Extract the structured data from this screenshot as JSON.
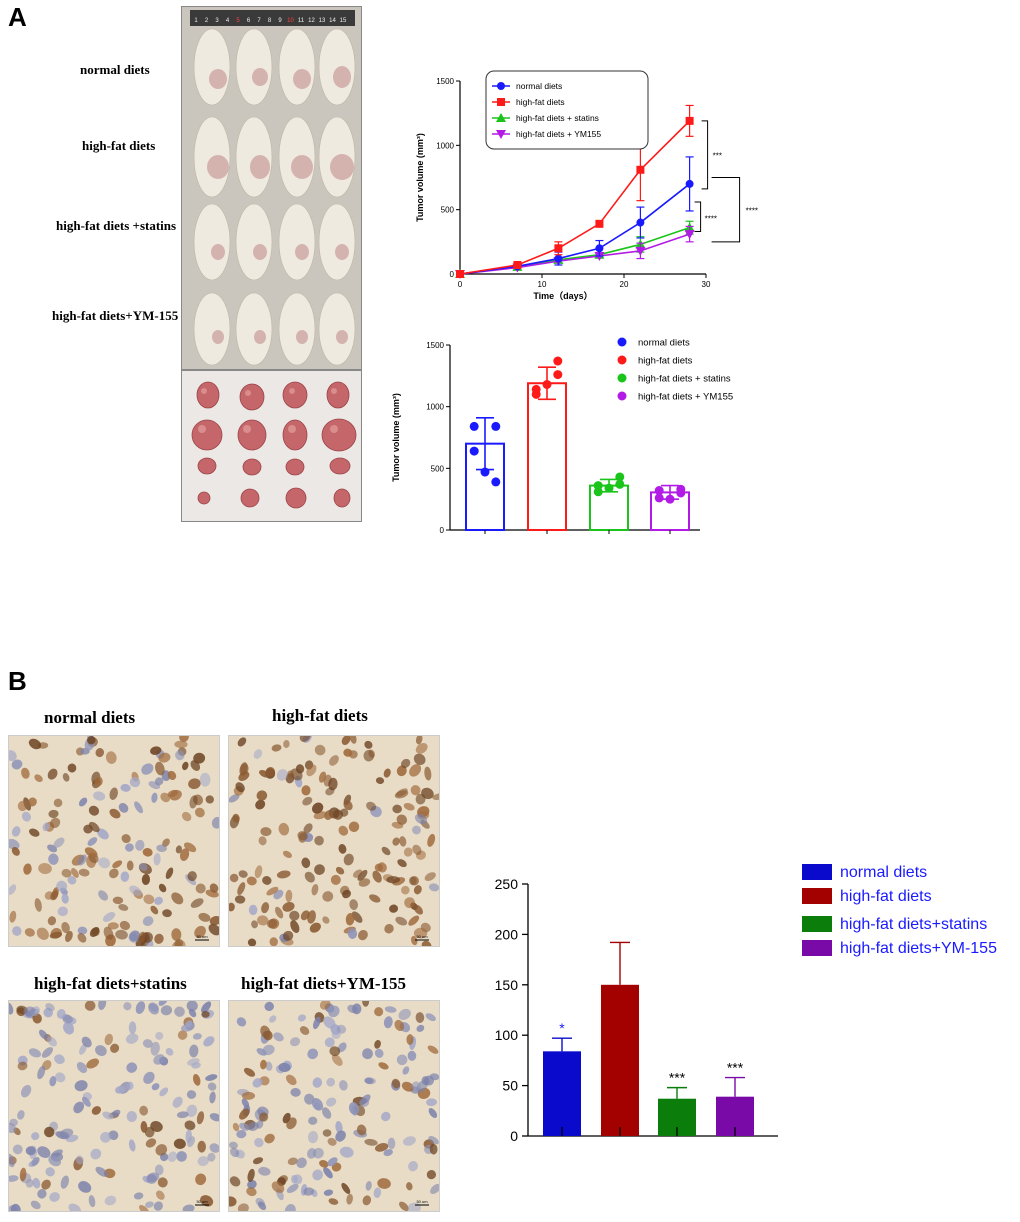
{
  "panels": {
    "a": "A",
    "b": "B"
  },
  "mice_photo": {
    "ruler_numbers": [
      "1",
      "2",
      "3",
      "4",
      "5",
      "6",
      "7",
      "8",
      "9",
      "10",
      "11",
      "12",
      "13",
      "14",
      "15"
    ],
    "group_labels": [
      "normal diets",
      "high-fat diets",
      "high-fat diets +statins",
      "high-fat diets+YM-155"
    ]
  },
  "ihc": {
    "labels": [
      "normal diets",
      "high-fat diets",
      "high-fat diets+statins",
      "high-fat diets+YM-155"
    ],
    "scale_bar": "50 um"
  },
  "colors": {
    "blue": "#1a1aff",
    "red": "#ff1a1a",
    "green": "#1ac41a",
    "purple": "#b21ae6",
    "dblue": "#0a0acc",
    "dred": "#a30000",
    "dgreen": "#0a7d0a",
    "dpurple": "#7a0aa8",
    "tissue": "#e8dcc6"
  },
  "chart_data": [
    {
      "type": "line",
      "xlabel": "Time（days）",
      "ylabel": "Tumor volume (mm³)",
      "xlim": [
        0,
        30
      ],
      "ylim": [
        0,
        1500
      ],
      "xticks": [
        "0",
        "10",
        "20",
        "30"
      ],
      "yticks": [
        "0",
        "500",
        "1000",
        "1500"
      ],
      "x": [
        0,
        7,
        12,
        17,
        22,
        28
      ],
      "series": [
        {
          "name": "normal diets",
          "values": [
            0,
            60,
            120,
            200,
            400,
            700
          ],
          "err": [
            10,
            20,
            50,
            60,
            120,
            210
          ],
          "marker": "circle",
          "color": "#1a1aff"
        },
        {
          "name": "high-fat diets",
          "values": [
            0,
            70,
            200,
            390,
            810,
            1190
          ],
          "err": [
            10,
            20,
            50,
            25,
            240,
            120
          ],
          "marker": "square",
          "color": "#ff1a1a"
        },
        {
          "name": "high-fat diets + statins",
          "values": [
            0,
            55,
            110,
            150,
            230,
            360
          ],
          "err": [
            10,
            20,
            20,
            30,
            60,
            50
          ],
          "marker": "triangle",
          "color": "#1ac41a"
        },
        {
          "name": "high-fat diets + YM155",
          "values": [
            0,
            50,
            100,
            140,
            180,
            310
          ],
          "err": [
            10,
            20,
            20,
            30,
            60,
            60
          ],
          "marker": "triangle-down",
          "color": "#b21ae6"
        }
      ],
      "significance": [
        "***",
        "****",
        "****"
      ]
    },
    {
      "type": "bar",
      "ylabel": "Tumor volume (mm³)",
      "ylim": [
        0,
        1500
      ],
      "yticks": [
        "0",
        "500",
        "1000",
        "1500"
      ],
      "categories": [
        "normal diets",
        "high-fat diets",
        "high-fat diets + statins",
        "high-fat diets + YM155"
      ],
      "values": [
        700,
        1190,
        360,
        305
      ],
      "err": [
        210,
        130,
        50,
        55
      ],
      "colors": [
        "#1a1aff",
        "#ff1a1a",
        "#1ac41a",
        "#b21ae6"
      ],
      "points": [
        [
          840,
          840,
          470,
          390,
          640
        ],
        [
          1100,
          1260,
          1180,
          1370,
          1140
        ],
        [
          310,
          430,
          340,
          370,
          360
        ],
        [
          260,
          330,
          250,
          300,
          320
        ]
      ]
    },
    {
      "type": "bar",
      "ylim": [
        0,
        250
      ],
      "yticks": [
        "0",
        "50",
        "100",
        "150",
        "200",
        "250"
      ],
      "categories": [
        "normal diets",
        "high-fat diets",
        "high-fat diets+statins",
        "high-fat diets+YM-155"
      ],
      "values": [
        84,
        150,
        37,
        39
      ],
      "err": [
        13,
        42,
        11,
        19
      ],
      "colors": [
        "#0a0acc",
        "#a30000",
        "#0a7d0a",
        "#7a0aa8"
      ],
      "significance": [
        "*",
        "",
        "***",
        "***"
      ]
    }
  ]
}
